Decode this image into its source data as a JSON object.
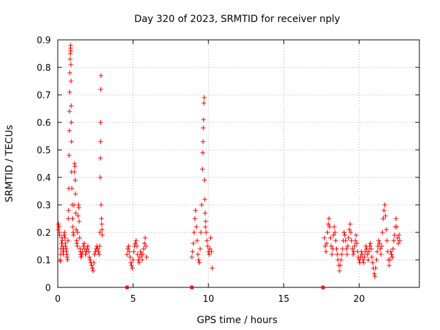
{
  "chart_data": {
    "type": "scatter",
    "title": "Day 320 of 2023, SRMTID for receiver nply",
    "xlabel": "GPS time / hours",
    "ylabel": "SRMTID / TECUs",
    "xlim": [
      0,
      24
    ],
    "ylim": [
      0,
      0.9
    ],
    "xticks": [
      0,
      5,
      10,
      15,
      20
    ],
    "yticks": [
      0,
      0.1,
      0.2,
      0.3,
      0.4,
      0.5,
      0.6,
      0.7,
      0.8,
      0.9
    ],
    "xtick_labels": [
      "0",
      "5",
      "10",
      "15",
      "20"
    ],
    "ytick_labels": [
      "0",
      "0.1",
      "0.2",
      "0.3",
      "0.4",
      "0.5",
      "0.6",
      "0.7",
      "0.8",
      "0.9"
    ],
    "grid": true,
    "marker": "+",
    "color": "#ff0000",
    "series": [
      {
        "name": "SRMTID",
        "points": [
          [
            0.02,
            0.21
          ],
          [
            0.05,
            0.23
          ],
          [
            0.08,
            0.22
          ],
          [
            0.1,
            0.2
          ],
          [
            0.12,
            0.19
          ],
          [
            0.15,
            0.1
          ],
          [
            0.18,
            0.095
          ],
          [
            0.2,
            0.12
          ],
          [
            0.22,
            0.14
          ],
          [
            0.25,
            0.16
          ],
          [
            0.28,
            0.18
          ],
          [
            0.3,
            0.17
          ],
          [
            0.33,
            0.15
          ],
          [
            0.35,
            0.13
          ],
          [
            0.38,
            0.12
          ],
          [
            0.4,
            0.14
          ],
          [
            0.42,
            0.19
          ],
          [
            0.45,
            0.2
          ],
          [
            0.48,
            0.18
          ],
          [
            0.5,
            0.16
          ],
          [
            0.52,
            0.15
          ],
          [
            0.55,
            0.14
          ],
          [
            0.58,
            0.13
          ],
          [
            0.6,
            0.12
          ],
          [
            0.62,
            0.11
          ],
          [
            0.65,
            0.1
          ],
          [
            0.68,
            0.17
          ],
          [
            0.7,
            0.25
          ],
          [
            0.72,
            0.28
          ],
          [
            0.74,
            0.36
          ],
          [
            0.75,
            0.48
          ],
          [
            0.77,
            0.57
          ],
          [
            0.78,
            0.64
          ],
          [
            0.79,
            0.71
          ],
          [
            0.8,
            0.78
          ],
          [
            0.82,
            0.83
          ],
          [
            0.83,
            0.85
          ],
          [
            0.84,
            0.87
          ],
          [
            0.85,
            0.88
          ],
          [
            0.86,
            0.86
          ],
          [
            0.87,
            0.81
          ],
          [
            0.88,
            0.75
          ],
          [
            0.89,
            0.66
          ],
          [
            0.9,
            0.6
          ],
          [
            0.91,
            0.53
          ],
          [
            0.92,
            0.42
          ],
          [
            0.94,
            0.36
          ],
          [
            0.96,
            0.3
          ],
          [
            0.98,
            0.25
          ],
          [
            1.0,
            0.22
          ],
          [
            1.02,
            0.2
          ],
          [
            1.05,
            0.19
          ],
          [
            1.08,
            0.3
          ],
          [
            1.1,
            0.42
          ],
          [
            1.12,
            0.45
          ],
          [
            1.14,
            0.44
          ],
          [
            1.16,
            0.39
          ],
          [
            1.18,
            0.34
          ],
          [
            1.2,
            0.27
          ],
          [
            1.22,
            0.21
          ],
          [
            1.25,
            0.17
          ],
          [
            1.28,
            0.16
          ],
          [
            1.3,
            0.15
          ],
          [
            1.32,
            0.2
          ],
          [
            1.35,
            0.26
          ],
          [
            1.38,
            0.3
          ],
          [
            1.4,
            0.29
          ],
          [
            1.42,
            0.24
          ],
          [
            1.45,
            0.18
          ],
          [
            1.48,
            0.14
          ],
          [
            1.5,
            0.13
          ],
          [
            1.52,
            0.12
          ],
          [
            1.55,
            0.11
          ],
          [
            1.6,
            0.12
          ],
          [
            1.65,
            0.13
          ],
          [
            1.7,
            0.15
          ],
          [
            1.75,
            0.16
          ],
          [
            1.8,
            0.14
          ],
          [
            1.85,
            0.12
          ],
          [
            1.9,
            0.13
          ],
          [
            1.95,
            0.14
          ],
          [
            2.0,
            0.15
          ],
          [
            2.05,
            0.13
          ],
          [
            2.1,
            0.11
          ],
          [
            2.15,
            0.1
          ],
          [
            2.2,
            0.09
          ],
          [
            2.25,
            0.08
          ],
          [
            2.3,
            0.07
          ],
          [
            2.35,
            0.06
          ],
          [
            2.4,
            0.09
          ],
          [
            2.45,
            0.12
          ],
          [
            2.5,
            0.13
          ],
          [
            2.55,
            0.14
          ],
          [
            2.6,
            0.15
          ],
          [
            2.65,
            0.14
          ],
          [
            2.7,
            0.13
          ],
          [
            2.75,
            0.12
          ],
          [
            2.78,
            0.15
          ],
          [
            2.8,
            0.2
          ],
          [
            2.82,
            0.4
          ],
          [
            2.83,
            0.47
          ],
          [
            2.84,
            0.53
          ],
          [
            2.85,
            0.6
          ],
          [
            2.86,
            0.72
          ],
          [
            2.87,
            0.77
          ],
          [
            2.88,
            0.3
          ],
          [
            2.9,
            0.25
          ],
          [
            2.92,
            0.23
          ],
          [
            2.94,
            0.21
          ],
          [
            2.96,
            0.19
          ],
          [
            4.6,
            0.12
          ],
          [
            4.65,
            0.14
          ],
          [
            4.7,
            0.15
          ],
          [
            4.75,
            0.13
          ],
          [
            4.8,
            0.11
          ],
          [
            4.85,
            0.09
          ],
          [
            4.9,
            0.08
          ],
          [
            4.95,
            0.07
          ],
          [
            5.0,
            0.1
          ],
          [
            5.05,
            0.13
          ],
          [
            5.1,
            0.15
          ],
          [
            5.15,
            0.16
          ],
          [
            5.2,
            0.17
          ],
          [
            5.25,
            0.15
          ],
          [
            5.3,
            0.12
          ],
          [
            5.35,
            0.1
          ],
          [
            5.4,
            0.09
          ],
          [
            5.45,
            0.11
          ],
          [
            5.5,
            0.13
          ],
          [
            5.55,
            0.12
          ],
          [
            5.6,
            0.1
          ],
          [
            5.65,
            0.12
          ],
          [
            5.7,
            0.14
          ],
          [
            5.75,
            0.16
          ],
          [
            5.8,
            0.18
          ],
          [
            5.85,
            0.15
          ],
          [
            5.9,
            0.11
          ],
          [
            8.9,
            0.11
          ],
          [
            8.95,
            0.13
          ],
          [
            9.0,
            0.16
          ],
          [
            9.05,
            0.2
          ],
          [
            9.1,
            0.25
          ],
          [
            9.15,
            0.28
          ],
          [
            9.2,
            0.22
          ],
          [
            9.25,
            0.17
          ],
          [
            9.3,
            0.12
          ],
          [
            9.35,
            0.1
          ],
          [
            9.4,
            0.09
          ],
          [
            9.45,
            0.14
          ],
          [
            9.5,
            0.2
          ],
          [
            9.55,
            0.3
          ],
          [
            9.6,
            0.43
          ],
          [
            9.62,
            0.49
          ],
          [
            9.64,
            0.53
          ],
          [
            9.66,
            0.58
          ],
          [
            9.68,
            0.61
          ],
          [
            9.7,
            0.67
          ],
          [
            9.72,
            0.69
          ],
          [
            9.74,
            0.39
          ],
          [
            9.76,
            0.32
          ],
          [
            9.78,
            0.27
          ],
          [
            9.8,
            0.22
          ],
          [
            9.82,
            0.24
          ],
          [
            9.85,
            0.2
          ],
          [
            9.9,
            0.17
          ],
          [
            9.95,
            0.15
          ],
          [
            10.0,
            0.13
          ],
          [
            10.05,
            0.12
          ],
          [
            10.1,
            0.14
          ],
          [
            10.15,
            0.18
          ],
          [
            10.2,
            0.13
          ],
          [
            10.25,
            0.07
          ],
          [
            17.7,
            0.18
          ],
          [
            17.75,
            0.15
          ],
          [
            17.8,
            0.13
          ],
          [
            17.85,
            0.16
          ],
          [
            17.9,
            0.2
          ],
          [
            17.95,
            0.23
          ],
          [
            18.0,
            0.25
          ],
          [
            18.05,
            0.22
          ],
          [
            18.1,
            0.18
          ],
          [
            18.15,
            0.15
          ],
          [
            18.2,
            0.12
          ],
          [
            18.25,
            0.14
          ],
          [
            18.3,
            0.19
          ],
          [
            18.35,
            0.22
          ],
          [
            18.4,
            0.2
          ],
          [
            18.45,
            0.17
          ],
          [
            18.5,
            0.14
          ],
          [
            18.55,
            0.12
          ],
          [
            18.6,
            0.1
          ],
          [
            18.65,
            0.08
          ],
          [
            18.7,
            0.06
          ],
          [
            18.75,
            0.08
          ],
          [
            18.8,
            0.1
          ],
          [
            18.85,
            0.12
          ],
          [
            18.9,
            0.14
          ],
          [
            18.95,
            0.17
          ],
          [
            19.0,
            0.2
          ],
          [
            19.05,
            0.19
          ],
          [
            19.1,
            0.17
          ],
          [
            19.15,
            0.14
          ],
          [
            19.2,
            0.12
          ],
          [
            19.25,
            0.15
          ],
          [
            19.3,
            0.18
          ],
          [
            19.35,
            0.21
          ],
          [
            19.4,
            0.23
          ],
          [
            19.45,
            0.2
          ],
          [
            19.5,
            0.17
          ],
          [
            19.55,
            0.14
          ],
          [
            19.6,
            0.12
          ],
          [
            19.65,
            0.13
          ],
          [
            19.7,
            0.15
          ],
          [
            19.75,
            0.17
          ],
          [
            19.8,
            0.19
          ],
          [
            19.85,
            0.16
          ],
          [
            19.9,
            0.13
          ],
          [
            19.95,
            0.11
          ],
          [
            20.0,
            0.1
          ],
          [
            20.05,
            0.09
          ],
          [
            20.1,
            0.11
          ],
          [
            20.15,
            0.13
          ],
          [
            20.2,
            0.12
          ],
          [
            20.25,
            0.1
          ],
          [
            20.3,
            0.09
          ],
          [
            20.35,
            0.11
          ],
          [
            20.4,
            0.13
          ],
          [
            20.45,
            0.15
          ],
          [
            20.5,
            0.14
          ],
          [
            20.55,
            0.12
          ],
          [
            20.6,
            0.1
          ],
          [
            20.65,
            0.13
          ],
          [
            20.7,
            0.15
          ],
          [
            20.75,
            0.16
          ],
          [
            20.8,
            0.14
          ],
          [
            20.85,
            0.11
          ],
          [
            20.9,
            0.09
          ],
          [
            20.95,
            0.07
          ],
          [
            21.0,
            0.05
          ],
          [
            21.05,
            0.04
          ],
          [
            21.1,
            0.07
          ],
          [
            21.15,
            0.1
          ],
          [
            21.2,
            0.13
          ],
          [
            21.25,
            0.15
          ],
          [
            21.3,
            0.17
          ],
          [
            21.35,
            0.16
          ],
          [
            21.4,
            0.14
          ],
          [
            21.45,
            0.12
          ],
          [
            21.5,
            0.15
          ],
          [
            21.55,
            0.2
          ],
          [
            21.6,
            0.25
          ],
          [
            21.65,
            0.28
          ],
          [
            21.7,
            0.3
          ],
          [
            21.75,
            0.26
          ],
          [
            21.8,
            0.21
          ],
          [
            21.85,
            0.17
          ],
          [
            21.9,
            0.13
          ],
          [
            21.95,
            0.1
          ],
          [
            22.0,
            0.08
          ],
          [
            22.05,
            0.1
          ],
          [
            22.1,
            0.13
          ],
          [
            22.15,
            0.12
          ],
          [
            22.2,
            0.11
          ],
          [
            22.25,
            0.14
          ],
          [
            22.3,
            0.17
          ],
          [
            22.35,
            0.19
          ],
          [
            22.4,
            0.22
          ],
          [
            22.45,
            0.25
          ],
          [
            22.5,
            0.22
          ],
          [
            22.55,
            0.18
          ],
          [
            22.6,
            0.16
          ],
          [
            22.65,
            0.19
          ],
          [
            22.7,
            0.17
          ]
        ]
      }
    ],
    "zero_markers_x": [
      4.6,
      8.9,
      17.6
    ]
  }
}
